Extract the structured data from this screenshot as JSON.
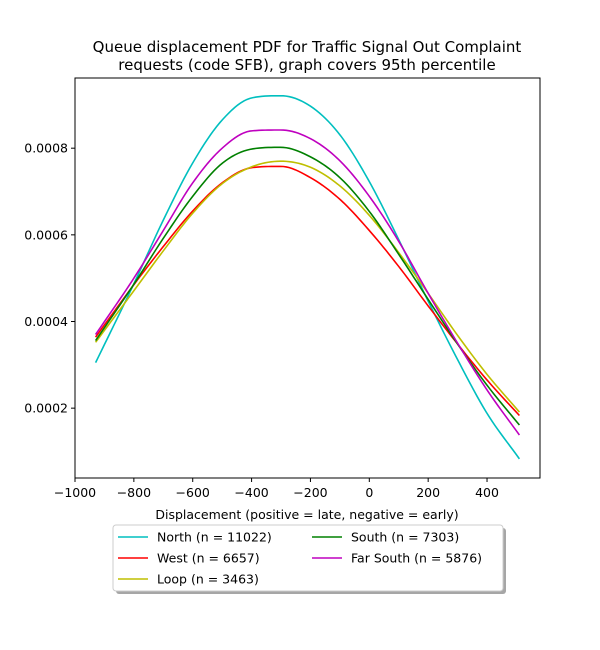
{
  "chart_data": {
    "type": "line",
    "title_line1": "Queue displacement PDF for Traffic Signal Out Complaint",
    "title_line2": "requests (code SFB), graph covers 95th percentile",
    "xlabel": "Displacement (positive = late, negative = early)",
    "ylabel": "",
    "xlim": [
      -1000,
      580
    ],
    "ylim": [
      3.88e-05,
      0.000962
    ],
    "x_ticks": [
      {
        "value": -1000,
        "label": "−1000"
      },
      {
        "value": -800,
        "label": "−800"
      },
      {
        "value": -600,
        "label": "−600"
      },
      {
        "value": -400,
        "label": "−400"
      },
      {
        "value": -200,
        "label": "−200"
      },
      {
        "value": 0,
        "label": "0"
      },
      {
        "value": 200,
        "label": "200"
      },
      {
        "value": 400,
        "label": "400"
      }
    ],
    "y_ticks": [
      {
        "value": 0.0002,
        "label": "0.0002"
      },
      {
        "value": 0.0004,
        "label": "0.0004"
      },
      {
        "value": 0.0006,
        "label": "0.0006"
      },
      {
        "value": 0.0008,
        "label": "0.0008"
      }
    ],
    "grid": false,
    "legend_position": "below",
    "series": [
      {
        "name": "North (n = 11022)",
        "color": "#00bfbf",
        "x": [
          -930,
          -800,
          -700,
          -600,
          -500,
          -400,
          -300,
          -200,
          -100,
          0,
          100,
          200,
          300,
          400,
          510
        ],
        "y": [
          0.000305,
          0.000487,
          0.000634,
          0.000766,
          0.000865,
          0.000916,
          0.000921,
          0.000897,
          0.000831,
          0.000723,
          0.000589,
          0.000447,
          0.000312,
          0.000188,
          8.3e-05
        ]
      },
      {
        "name": "West (n = 6657)",
        "color": "#ff0000",
        "x": [
          -930,
          -800,
          -700,
          -600,
          -500,
          -400,
          -300,
          -200,
          -100,
          0,
          100,
          200,
          300,
          400,
          510
        ],
        "y": [
          0.000364,
          0.000485,
          0.000573,
          0.000655,
          0.00072,
          0.000755,
          0.000758,
          0.000732,
          0.000682,
          0.00061,
          0.000527,
          0.000436,
          0.000348,
          0.000265,
          0.000183
        ]
      },
      {
        "name": "Loop (n = 3463)",
        "color": "#bfbf00",
        "x": [
          -930,
          -800,
          -700,
          -600,
          -500,
          -400,
          -300,
          -200,
          -100,
          0,
          100,
          200,
          300,
          400,
          510
        ],
        "y": [
          0.000352,
          0.000471,
          0.000563,
          0.00065,
          0.000718,
          0.000757,
          0.00077,
          0.000756,
          0.000713,
          0.000645,
          0.000559,
          0.000465,
          0.000368,
          0.000278,
          0.000191
        ]
      },
      {
        "name": "South (n = 7303)",
        "color": "#008000",
        "x": [
          -930,
          -800,
          -700,
          -600,
          -500,
          -400,
          -300,
          -200,
          -100,
          0,
          100,
          200,
          300,
          400,
          510
        ],
        "y": [
          0.000356,
          0.000486,
          0.000592,
          0.000689,
          0.000765,
          0.000798,
          0.000802,
          0.00078,
          0.000732,
          0.000654,
          0.000555,
          0.000451,
          0.000348,
          0.000253,
          0.000161
        ]
      },
      {
        "name": "Far South (n = 5876)",
        "color": "#bf00bf",
        "x": [
          -930,
          -800,
          -700,
          -600,
          -500,
          -400,
          -300,
          -200,
          -100,
          0,
          100,
          200,
          300,
          400,
          510
        ],
        "y": [
          0.00037,
          0.0005,
          0.00061,
          0.00072,
          0.0008,
          0.00084,
          0.000842,
          0.000822,
          0.000771,
          0.000689,
          0.000585,
          0.000465,
          0.00035,
          0.000242,
          0.000138
        ]
      }
    ]
  }
}
